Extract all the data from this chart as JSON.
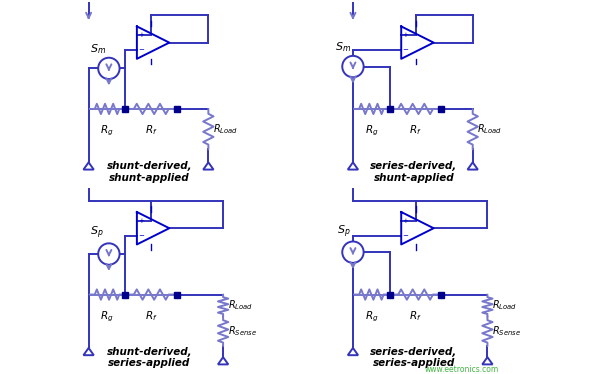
{
  "bg_color": "#ffffff",
  "lc": "#3333BB",
  "lc_dark": "#0000CD",
  "lc_light": "#7777CC",
  "dc": "#00008B",
  "lw": 1.4,
  "fig_w": 6.0,
  "fig_h": 3.74,
  "dpi": 100,
  "panels": [
    {
      "label": "shunt-derived,\nshunt-applied",
      "src_label": "S_m",
      "shunt_src": true,
      "shunt_out": true,
      "top_gnd": true
    },
    {
      "label": "series-derived,\nshunt-applied",
      "src_label": "S_m",
      "shunt_src": false,
      "shunt_out": true,
      "top_gnd": true
    },
    {
      "label": "shunt-derived,\nseries-applied",
      "src_label": "S_p",
      "shunt_src": true,
      "shunt_out": false,
      "top_gnd": false
    },
    {
      "label": "series-derived,\nseries-applied",
      "src_label": "S_p",
      "shunt_src": false,
      "shunt_out": false,
      "top_gnd": false
    }
  ],
  "wm": "www.eetronics.com"
}
